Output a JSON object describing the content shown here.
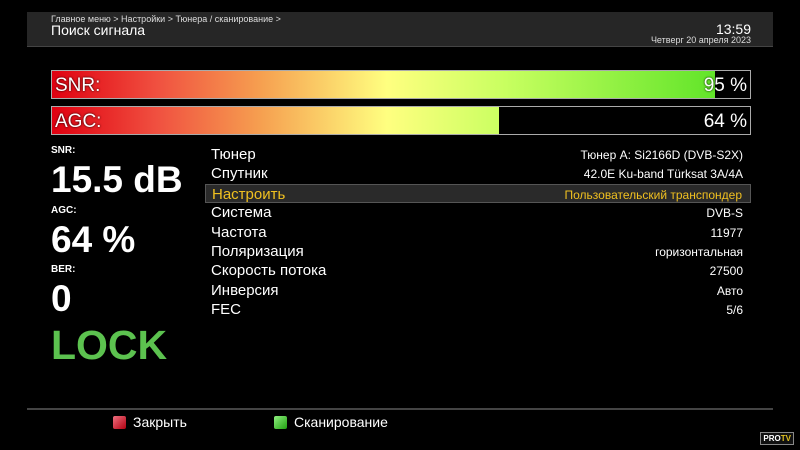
{
  "header": {
    "breadcrumb": "Главное меню > Настройки > Тюнера / сканирование >",
    "title": "Поиск сигнала",
    "time": "13:59",
    "date": "Четверг 20 апреля 2023"
  },
  "bars": {
    "snr": {
      "label": "SNR:",
      "percent_text": "95 %",
      "percent": 95
    },
    "agc": {
      "label": "AGC:",
      "percent_text": "64 %",
      "percent": 64
    }
  },
  "stats": {
    "snr_label": "SNR:",
    "snr_value": "15.5 dB",
    "agc_label": "AGC:",
    "agc_value": "64 %",
    "ber_label": "BER:",
    "ber_value": "0",
    "lock": "LOCK"
  },
  "rows": [
    {
      "k": "Тюнер",
      "v": "Тюнер A: Si2166D (DVB-S2X)"
    },
    {
      "k": "Спутник",
      "v": "42.0E Ku-band Türksat 3A/4A"
    },
    {
      "k": "Настроить",
      "v": "Пользовательский транспондер",
      "selected": true
    },
    {
      "k": "Система",
      "v": "DVB-S"
    },
    {
      "k": "Частота",
      "v": "11977"
    },
    {
      "k": "Поляризация",
      "v": "горизонтальная"
    },
    {
      "k": "Скорость потока",
      "v": "27500"
    },
    {
      "k": "Инверсия",
      "v": "Авто"
    },
    {
      "k": "FEC",
      "v": "5/6"
    }
  ],
  "footer": {
    "red": "Закрыть",
    "green": "Сканирование",
    "red_color": "#d01020",
    "green_color": "#40c030"
  },
  "logo": "PRO TV"
}
